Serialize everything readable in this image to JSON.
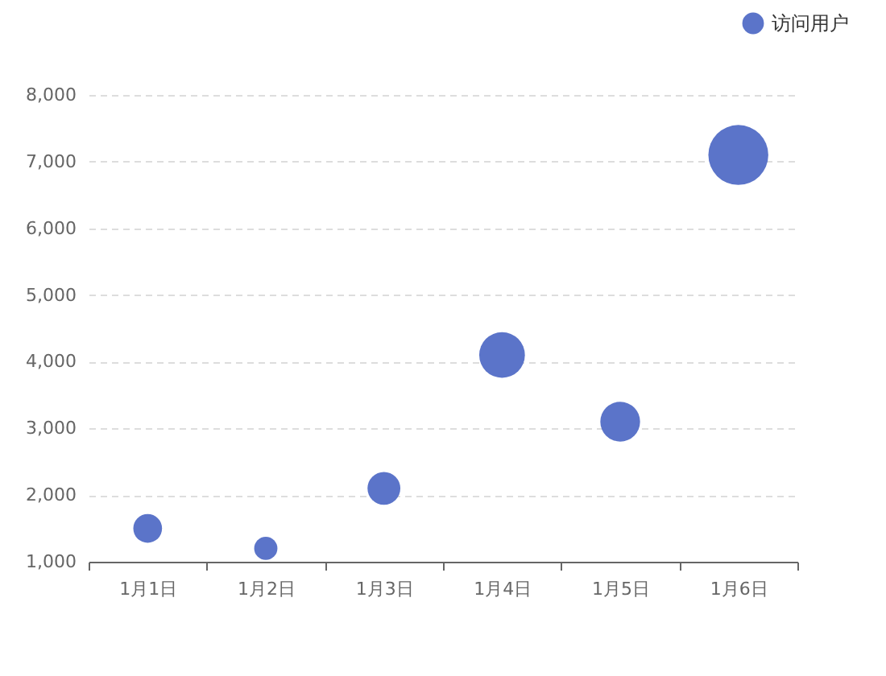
{
  "chart_data": {
    "type": "bubble",
    "categories": [
      "1月1日",
      "1月2日",
      "1月3日",
      "1月4日",
      "1月5日",
      "1月6日"
    ],
    "series": [
      {
        "name": "访问用户",
        "color": "#5b74c9",
        "values": [
          1500,
          1200,
          2100,
          4100,
          3100,
          7100
        ],
        "sizes": [
          0.23,
          0.15,
          0.3,
          0.58,
          0.44,
          1
        ]
      }
    ],
    "ylim": [
      1000,
      8000
    ],
    "yticks": [
      {
        "value": 1000,
        "label": "1,000"
      },
      {
        "value": 2000,
        "label": "2,000"
      },
      {
        "value": 3000,
        "label": "3,000"
      },
      {
        "value": 4000,
        "label": "4,000"
      },
      {
        "value": 5000,
        "label": "5,000"
      },
      {
        "value": 6000,
        "label": "6,000"
      },
      {
        "value": 7000,
        "label": "7,000"
      },
      {
        "value": 8000,
        "label": "8,000"
      }
    ],
    "grid": "y",
    "legend": "top right"
  }
}
